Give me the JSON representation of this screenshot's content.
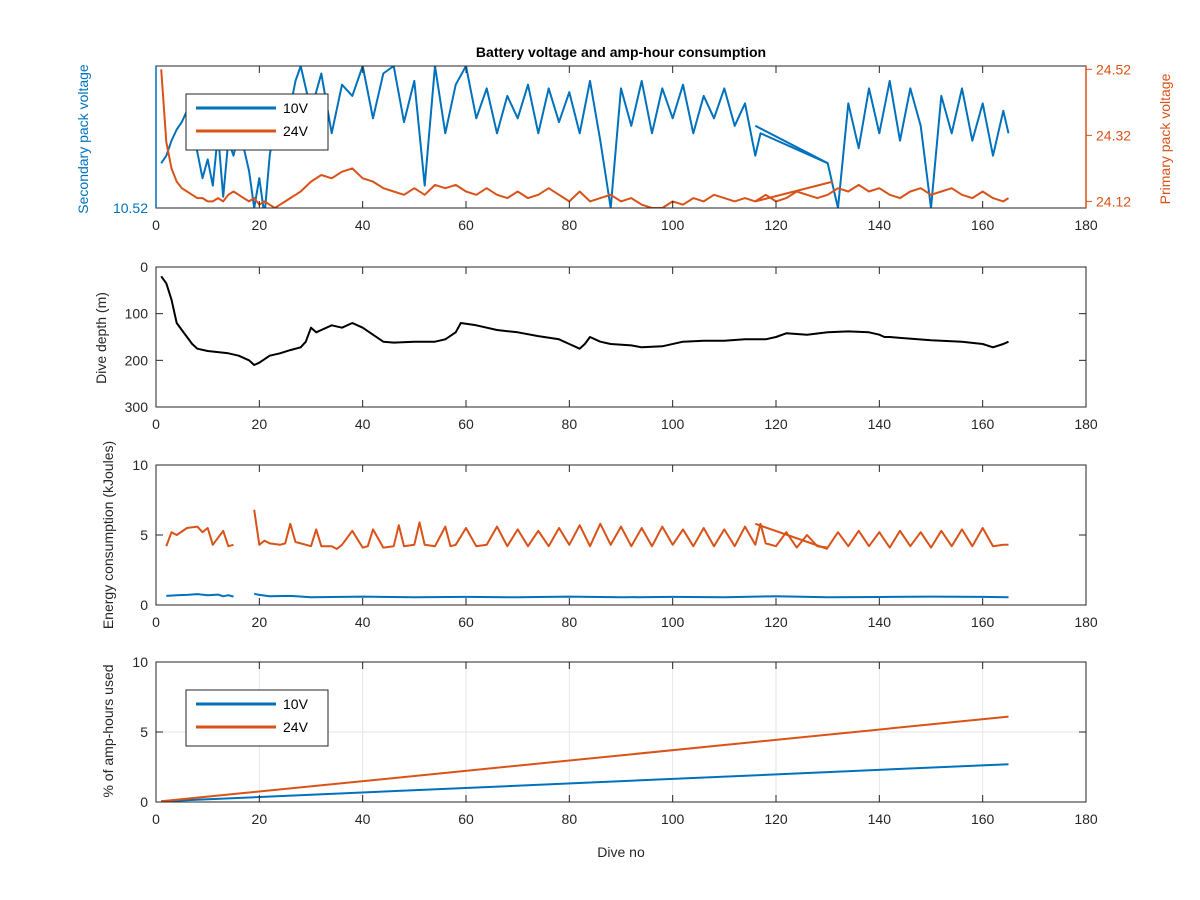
{
  "figure": {
    "title": "Battery voltage and amp-hour consumption",
    "colors": {
      "blue": "#0072bd",
      "orange": "#d95319",
      "black": "#000000",
      "axis": "#262626",
      "grid": "#e6e6e6"
    }
  },
  "chart_data": [
    {
      "type": "line",
      "panel": "voltage",
      "title": "Battery voltage and amp-hour consumption",
      "xlabel": "",
      "ylabel_left": "Secondary pack voltage",
      "ylabel_right": "Primary pack voltage",
      "xlim": [
        0,
        180
      ],
      "x_ticks": [
        "0",
        "20",
        "40",
        "60",
        "80",
        "100",
        "120",
        "140",
        "160",
        "180"
      ],
      "y_left_ticks": [
        "10.52"
      ],
      "y_right_ticks": [
        "24.52",
        "24.32",
        "24.12"
      ],
      "grid": false,
      "legend": {
        "position": "top-left",
        "entries": [
          "10V",
          "24V"
        ]
      },
      "series": [
        {
          "name": "10V",
          "axis": "left",
          "color": "#0072bd",
          "x": [
            1,
            2,
            3,
            4,
            5,
            6,
            7,
            8,
            9,
            10,
            11,
            12,
            13,
            14,
            15,
            16,
            17,
            18,
            19,
            20,
            21,
            22,
            23,
            24,
            25,
            26,
            27,
            28,
            30,
            32,
            34,
            36,
            38,
            40,
            42,
            44,
            46,
            48,
            50,
            52,
            54,
            56,
            58,
            60,
            62,
            64,
            66,
            68,
            70,
            72,
            74,
            76,
            78,
            80,
            82,
            84,
            86,
            88,
            90,
            92,
            94,
            96,
            98,
            100,
            102,
            104,
            106,
            108,
            110,
            112,
            114,
            116,
            117,
            130,
            131,
            132,
            134,
            136,
            138,
            140,
            142,
            144,
            146,
            148,
            150,
            152,
            154,
            156,
            158,
            160,
            162,
            164,
            165
          ],
          "y": [
            10.64,
            10.66,
            10.7,
            10.73,
            10.75,
            10.78,
            10.72,
            10.67,
            10.6,
            10.65,
            10.58,
            10.72,
            10.55,
            10.7,
            10.66,
            10.72,
            10.68,
            10.62,
            10.52,
            10.6,
            10.5,
            10.66,
            10.75,
            10.8,
            10.7,
            10.79,
            10.86,
            10.9,
            10.78,
            10.88,
            10.72,
            10.85,
            10.82,
            10.9,
            10.76,
            10.88,
            10.9,
            10.75,
            10.86,
            10.58,
            10.9,
            10.72,
            10.85,
            10.9,
            10.76,
            10.84,
            10.72,
            10.82,
            10.76,
            10.85,
            10.72,
            10.84,
            10.75,
            10.83,
            10.72,
            10.86,
            10.7,
            10.52,
            10.84,
            10.74,
            10.86,
            10.72,
            10.84,
            10.76,
            10.85,
            10.72,
            10.82,
            10.76,
            10.84,
            10.74,
            10.8,
            10.66,
            10.72,
            10.64,
            10.58,
            10.52,
            10.8,
            10.68,
            10.84,
            10.72,
            10.86,
            10.7,
            10.84,
            10.74,
            10.52,
            10.82,
            10.72,
            10.84,
            10.7,
            10.8,
            10.66,
            10.78,
            10.72
          ],
          "note_line": {
            "x": [
              116,
              130
            ],
            "y": [
              10.74,
              10.64
            ]
          }
        },
        {
          "name": "24V",
          "axis": "right",
          "color": "#d95319",
          "x": [
            1,
            2,
            3,
            4,
            5,
            6,
            7,
            8,
            9,
            10,
            11,
            12,
            13,
            14,
            15,
            16,
            17,
            18,
            19,
            20,
            21,
            22,
            23,
            24,
            25,
            26,
            27,
            28,
            30,
            32,
            34,
            36,
            38,
            40,
            42,
            44,
            46,
            48,
            50,
            52,
            54,
            56,
            58,
            60,
            62,
            64,
            66,
            68,
            70,
            72,
            74,
            76,
            78,
            80,
            82,
            84,
            86,
            88,
            90,
            92,
            94,
            96,
            98,
            100,
            102,
            104,
            106,
            108,
            110,
            112,
            114,
            116,
            118,
            120,
            122,
            124,
            126,
            128,
            130,
            132,
            134,
            136,
            138,
            140,
            142,
            144,
            146,
            148,
            150,
            152,
            154,
            156,
            158,
            160,
            162,
            164,
            165
          ],
          "y": [
            24.52,
            24.3,
            24.22,
            24.18,
            24.16,
            24.15,
            24.14,
            24.13,
            24.13,
            24.12,
            24.12,
            24.13,
            24.12,
            24.14,
            24.15,
            24.14,
            24.13,
            24.12,
            24.13,
            24.11,
            24.12,
            24.11,
            24.1,
            24.11,
            24.12,
            24.13,
            24.14,
            24.15,
            24.18,
            24.2,
            24.19,
            24.21,
            24.22,
            24.19,
            24.18,
            24.16,
            24.15,
            24.14,
            24.16,
            24.14,
            24.17,
            24.16,
            24.17,
            24.15,
            24.14,
            24.16,
            24.14,
            24.13,
            24.15,
            24.13,
            24.14,
            24.16,
            24.14,
            24.12,
            24.15,
            24.12,
            24.13,
            24.14,
            24.12,
            24.13,
            24.11,
            24.1,
            24.1,
            24.12,
            24.11,
            24.13,
            24.12,
            24.14,
            24.13,
            24.12,
            24.13,
            24.12,
            24.14,
            24.12,
            24.13,
            24.15,
            24.14,
            24.13,
            24.14,
            24.16,
            24.15,
            24.17,
            24.15,
            24.16,
            24.14,
            24.13,
            24.15,
            24.16,
            24.14,
            24.15,
            24.16,
            24.14,
            24.13,
            24.15,
            24.13,
            24.12,
            24.13
          ],
          "note_line": {
            "x": [
              116,
              131
            ],
            "y": [
              24.12,
              24.18
            ]
          }
        }
      ]
    },
    {
      "type": "line",
      "panel": "depth",
      "xlabel": "",
      "ylabel": "Dive depth (m)",
      "xlim": [
        0,
        180
      ],
      "ylim": [
        300,
        0
      ],
      "x_ticks": [
        "0",
        "20",
        "40",
        "60",
        "80",
        "100",
        "120",
        "140",
        "160",
        "180"
      ],
      "y_ticks": [
        "0",
        "100",
        "200",
        "300"
      ],
      "grid": false,
      "series": [
        {
          "color": "#000000",
          "x": [
            1,
            2,
            3,
            4,
            5,
            6,
            7,
            8,
            10,
            14,
            16,
            18,
            19,
            20,
            22,
            24,
            26,
            28,
            29,
            30,
            31,
            32,
            34,
            36,
            38,
            40,
            42,
            44,
            46,
            50,
            54,
            56,
            58,
            59,
            62,
            66,
            70,
            74,
            78,
            80,
            82,
            83,
            84,
            86,
            88,
            92,
            94,
            98,
            102,
            106,
            110,
            114,
            118,
            120,
            122,
            126,
            130,
            134,
            138,
            140,
            141,
            142,
            144,
            150,
            156,
            160,
            162,
            164,
            165
          ],
          "y": [
            20,
            35,
            70,
            120,
            135,
            150,
            165,
            175,
            180,
            185,
            190,
            200,
            210,
            205,
            190,
            185,
            178,
            172,
            160,
            130,
            140,
            135,
            125,
            130,
            120,
            130,
            145,
            160,
            162,
            160,
            160,
            155,
            140,
            120,
            125,
            135,
            140,
            148,
            155,
            165,
            175,
            165,
            150,
            160,
            165,
            168,
            172,
            170,
            160,
            158,
            158,
            155,
            155,
            150,
            142,
            145,
            140,
            138,
            140,
            145,
            150,
            150,
            152,
            157,
            160,
            165,
            172,
            165,
            160
          ]
        }
      ]
    },
    {
      "type": "line",
      "panel": "energy",
      "xlabel": "",
      "ylabel": "Energy consumption (kJoules)",
      "xlim": [
        0,
        180
      ],
      "ylim": [
        0,
        10
      ],
      "x_ticks": [
        "0",
        "20",
        "40",
        "60",
        "80",
        "100",
        "120",
        "140",
        "160",
        "180"
      ],
      "y_ticks": [
        "0",
        "5",
        "10"
      ],
      "grid": false,
      "series": [
        {
          "name": "10V",
          "color": "#0072bd",
          "segments": [
            {
              "x": [
                2,
                4,
                6,
                8,
                10,
                12,
                13,
                14,
                15
              ],
              "y": [
                0.65,
                0.7,
                0.72,
                0.78,
                0.7,
                0.74,
                0.62,
                0.7,
                0.6
              ]
            },
            {
              "x": [
                19,
                20,
                22,
                26,
                30,
                40,
                50,
                60,
                70,
                80,
                90,
                100,
                110,
                116,
                120,
                130,
                140,
                150,
                160,
                165
              ],
              "y": [
                0.8,
                0.72,
                0.62,
                0.65,
                0.55,
                0.6,
                0.55,
                0.58,
                0.55,
                0.6,
                0.55,
                0.58,
                0.55,
                0.6,
                0.62,
                0.55,
                0.57,
                0.6,
                0.58,
                0.55
              ]
            }
          ]
        },
        {
          "name": "24V",
          "color": "#d95319",
          "segments": [
            {
              "x": [
                2,
                3,
                4,
                6,
                8,
                9,
                10,
                11,
                12,
                13,
                14,
                15
              ],
              "y": [
                4.2,
                5.2,
                5.0,
                5.5,
                5.6,
                5.2,
                5.5,
                4.3,
                4.8,
                5.3,
                4.2,
                4.3
              ]
            },
            {
              "x": [
                19,
                20,
                21,
                22,
                24,
                25,
                26,
                27,
                28,
                30,
                31,
                32,
                34,
                35,
                36,
                38,
                40,
                41,
                42,
                44,
                46,
                47,
                48,
                50,
                51,
                52,
                54,
                56,
                57,
                58,
                60,
                62,
                64,
                66,
                68,
                70,
                72,
                74,
                76,
                78,
                80,
                82,
                84,
                86,
                88,
                90,
                92,
                94,
                96,
                98,
                100,
                102,
                104,
                106,
                108,
                110,
                112,
                114,
                116,
                117,
                118,
                120,
                122,
                124,
                126,
                128,
                130,
                132,
                134,
                136,
                138,
                140,
                142,
                144,
                146,
                148,
                150,
                152,
                154,
                156,
                158,
                160,
                162,
                164,
                165
              ],
              "y": [
                6.8,
                4.3,
                4.6,
                4.4,
                4.3,
                4.4,
                5.8,
                4.5,
                4.4,
                4.2,
                5.4,
                4.2,
                4.2,
                4.0,
                4.3,
                5.3,
                4.1,
                4.2,
                5.4,
                4.1,
                4.2,
                5.7,
                4.2,
                4.3,
                5.9,
                4.3,
                4.2,
                5.6,
                4.2,
                4.3,
                5.5,
                4.2,
                4.3,
                5.6,
                4.2,
                5.4,
                4.2,
                5.3,
                4.2,
                5.5,
                4.3,
                5.7,
                4.2,
                5.8,
                4.3,
                5.6,
                4.2,
                5.5,
                4.2,
                5.6,
                4.3,
                5.4,
                4.2,
                5.5,
                4.2,
                5.4,
                4.2,
                5.6,
                4.3,
                5.8,
                4.4,
                4.2,
                5.2,
                4.1,
                5.0,
                4.2,
                4.1,
                5.2,
                4.2,
                5.3,
                4.2,
                5.2,
                4.1,
                5.3,
                4.2,
                5.2,
                4.1,
                5.3,
                4.2,
                5.4,
                4.2,
                5.5,
                4.2,
                4.3,
                4.3
              ]
            },
            {
              "x": [
                116,
                130
              ],
              "y": [
                5.8,
                4.0
              ]
            }
          ]
        }
      ]
    },
    {
      "type": "line",
      "panel": "amp-hours",
      "xlabel": "Dive no",
      "ylabel": "% of amp-hours used",
      "xlim": [
        0,
        180
      ],
      "ylim": [
        0,
        10
      ],
      "x_ticks": [
        "0",
        "20",
        "40",
        "60",
        "80",
        "100",
        "120",
        "140",
        "160",
        "180"
      ],
      "y_ticks": [
        "0",
        "5",
        "10"
      ],
      "grid": true,
      "legend": {
        "position": "top-left",
        "entries": [
          "10V",
          "24V"
        ]
      },
      "series": [
        {
          "name": "10V",
          "color": "#0072bd",
          "x": [
            1,
            165
          ],
          "y": [
            0.05,
            2.7
          ]
        },
        {
          "name": "24V",
          "color": "#d95319",
          "x": [
            1,
            165
          ],
          "y": [
            0.05,
            6.1
          ]
        }
      ]
    }
  ]
}
